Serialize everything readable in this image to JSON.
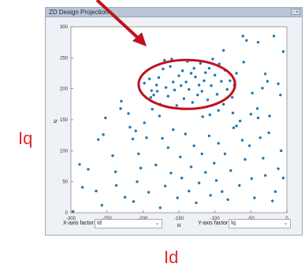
{
  "window": {
    "title": "ZD Design Projection",
    "control_glyph": "▫ ×"
  },
  "chart_data": {
    "type": "scatter",
    "xlabel": "Id",
    "ylabel": "Iq",
    "xlim": [
      -300,
      0
    ],
    "ylim": [
      0,
      300
    ],
    "x_ticks": [
      -300,
      -250,
      -200,
      -150,
      -100,
      -50,
      0
    ],
    "y_ticks": [
      0,
      50,
      100,
      150,
      200,
      250,
      300
    ],
    "grid": false,
    "marker_color": "#1f77b4",
    "points": [
      [
        -297,
        2
      ],
      [
        -288,
        78
      ],
      [
        -284,
        41
      ],
      [
        -276,
        70
      ],
      [
        -265,
        35
      ],
      [
        -262,
        118
      ],
      [
        -257,
        12
      ],
      [
        -255,
        126
      ],
      [
        -252,
        153
      ],
      [
        -242,
        92
      ],
      [
        -238,
        66
      ],
      [
        -237,
        44
      ],
      [
        -231,
        168
      ],
      [
        -225,
        25
      ],
      [
        -218,
        138
      ],
      [
        -214,
        119
      ],
      [
        -213,
        18
      ],
      [
        -208,
        50
      ],
      [
        -206,
        95
      ],
      [
        -203,
        72
      ],
      [
        -198,
        145
      ],
      [
        -195,
        121
      ],
      [
        -192,
        33
      ],
      [
        -189,
        186
      ],
      [
        -187,
        167
      ],
      [
        -182,
        77
      ],
      [
        -177,
        156
      ],
      [
        -176,
        8
      ],
      [
        -173,
        120
      ],
      [
        -169,
        43
      ],
      [
        -165,
        105
      ],
      [
        -161,
        64
      ],
      [
        -158,
        134
      ],
      [
        -152,
        24
      ],
      [
        -148,
        90
      ],
      [
        -146,
        56
      ],
      [
        -141,
        127
      ],
      [
        -136,
        35
      ],
      [
        -133,
        74
      ],
      [
        -129,
        108
      ],
      [
        -126,
        16
      ],
      [
        -122,
        48
      ],
      [
        -118,
        95
      ],
      [
        -113,
        65
      ],
      [
        -108,
        124
      ],
      [
        -106,
        28
      ],
      [
        -101,
        80
      ],
      [
        -98,
        52
      ],
      [
        -95,
        112
      ],
      [
        -90,
        34
      ],
      [
        -86,
        95
      ],
      [
        -82,
        21
      ],
      [
        -78,
        68
      ],
      [
        -74,
        137
      ],
      [
        -70,
        140
      ],
      [
        -66,
        44
      ],
      [
        -62,
        117
      ],
      [
        -58,
        86
      ],
      [
        -52,
        108
      ],
      [
        -49,
        55
      ],
      [
        -45,
        24
      ],
      [
        -41,
        168
      ],
      [
        -37,
        121
      ],
      [
        -33,
        88
      ],
      [
        -30,
        60
      ],
      [
        -25,
        129
      ],
      [
        -20,
        19
      ],
      [
        -16,
        34
      ],
      [
        -12,
        71
      ],
      [
        -8,
        100
      ],
      [
        -5,
        56
      ],
      [
        -230,
        180
      ],
      [
        -198,
        209
      ],
      [
        -191,
        216
      ],
      [
        -188,
        197
      ],
      [
        -185,
        190
      ],
      [
        -181,
        206
      ],
      [
        -178,
        218
      ],
      [
        -176,
        175
      ],
      [
        -172,
        232
      ],
      [
        -170,
        246
      ],
      [
        -168,
        202
      ],
      [
        -165,
        188
      ],
      [
        -162,
        236
      ],
      [
        -160,
        248
      ],
      [
        -158,
        211
      ],
      [
        -156,
        198
      ],
      [
        -153,
        173
      ],
      [
        -150,
        221
      ],
      [
        -147,
        205
      ],
      [
        -145,
        229
      ],
      [
        -143,
        184
      ],
      [
        -140,
        211
      ],
      [
        -138,
        244
      ],
      [
        -136,
        199
      ],
      [
        -133,
        225
      ],
      [
        -131,
        178
      ],
      [
        -129,
        233
      ],
      [
        -127,
        219
      ],
      [
        -124,
        190
      ],
      [
        -122,
        206
      ],
      [
        -120,
        241
      ],
      [
        -118,
        196
      ],
      [
        -115,
        213
      ],
      [
        -113,
        226
      ],
      [
        -110,
        182
      ],
      [
        -108,
        233
      ],
      [
        -105,
        205
      ],
      [
        -103,
        248
      ],
      [
        -100,
        222
      ],
      [
        -97,
        191
      ],
      [
        -94,
        240
      ],
      [
        -91,
        212
      ],
      [
        -88,
        175
      ],
      [
        -86,
        230
      ],
      [
        -83,
        199
      ],
      [
        -79,
        213
      ],
      [
        -76,
        186
      ],
      [
        -73,
        206
      ],
      [
        -70,
        225
      ],
      [
        -88,
        262
      ],
      [
        -61,
        285
      ],
      [
        -56,
        278
      ],
      [
        -40,
        275
      ],
      [
        -34,
        201
      ],
      [
        -30,
        224
      ],
      [
        -27,
        212
      ],
      [
        -18,
        285
      ],
      [
        -9,
        190
      ],
      [
        -5,
        260
      ],
      [
        -60,
        243
      ],
      [
        -48,
        193
      ],
      [
        -50,
        159
      ],
      [
        -40,
        153
      ],
      [
        -65,
        148
      ],
      [
        -75,
        161
      ],
      [
        -24,
        156
      ],
      [
        -12,
        208
      ],
      [
        -107,
        158
      ],
      [
        -95,
        165
      ],
      [
        -117,
        155
      ],
      [
        -210,
        132
      ],
      [
        -180,
        196
      ],
      [
        -220,
        160
      ]
    ]
  },
  "controls": {
    "x_axis_label": "X-axis factor:",
    "x_axis_value": "Id",
    "y_axis_label": "Y-axis factor:",
    "y_axis_value": "Iq",
    "caret_glyph": "⌄"
  },
  "annotations": {
    "left_label": "Iq",
    "bottom_label": "Id",
    "highlight_color": "#c0121e"
  }
}
